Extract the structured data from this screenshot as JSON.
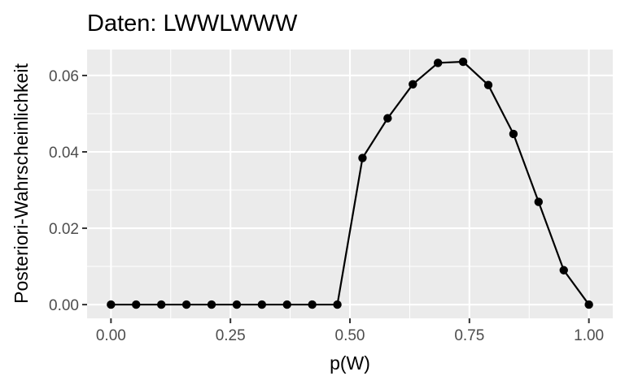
{
  "chart_data": {
    "type": "line",
    "title": "Daten: LWWLWWW",
    "xlabel": "p(W)",
    "ylabel": "Posteriori-Wahrscheinlichkeit",
    "x_ticks": [
      "0.00",
      "0.25",
      "0.50",
      "0.75",
      "1.00"
    ],
    "y_ticks": [
      "0.00",
      "0.02",
      "0.04",
      "0.06"
    ],
    "xlim": [
      -0.05,
      1.05
    ],
    "ylim": [
      -0.0036,
      0.0668
    ],
    "grid": true,
    "legend": "none",
    "series": [
      {
        "color": "#000000",
        "marker": "circle",
        "x": [
          0.0,
          0.0526,
          0.1053,
          0.1579,
          0.2105,
          0.2632,
          0.3158,
          0.3684,
          0.4211,
          0.4737,
          0.5263,
          0.5789,
          0.6316,
          0.6842,
          0.7368,
          0.7895,
          0.8421,
          0.8947,
          0.9474,
          1.0
        ],
        "y": [
          0.0,
          0.0,
          0.0,
          0.0,
          0.0,
          0.0,
          0.0,
          0.0,
          0.0,
          0.0,
          0.0384,
          0.0488,
          0.0577,
          0.0633,
          0.0636,
          0.0575,
          0.0447,
          0.0269,
          0.009,
          0.0
        ]
      }
    ]
  }
}
